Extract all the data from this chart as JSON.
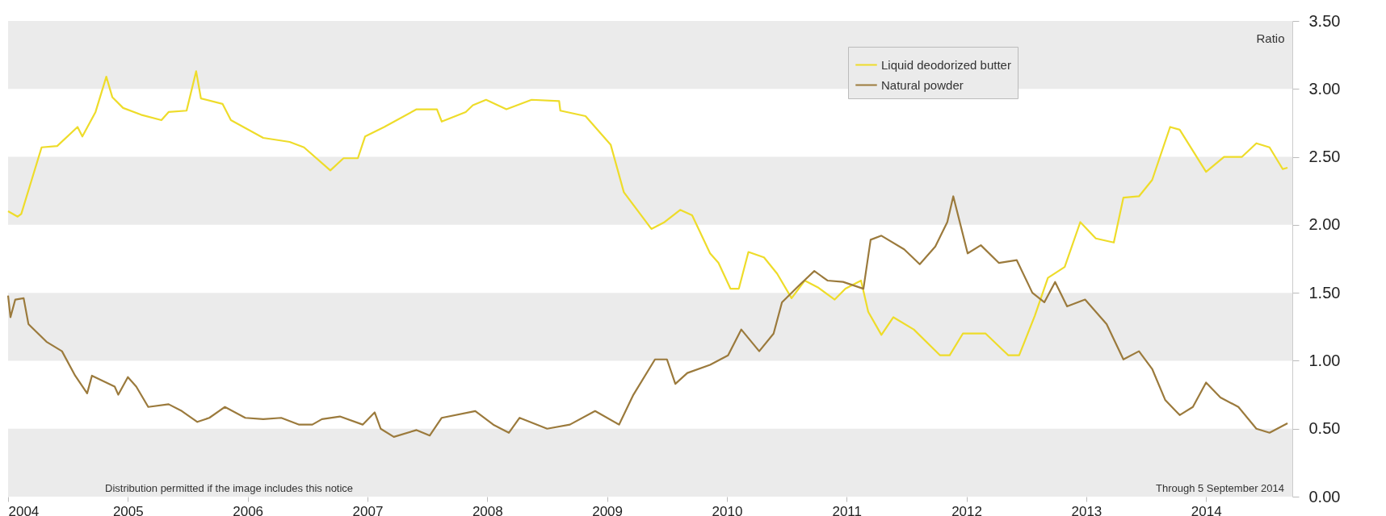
{
  "chart_data": {
    "type": "line",
    "ylabel": "Ratio",
    "legend": "top right",
    "line_style": "solid",
    "xlim": [
      2004,
      2014.72
    ],
    "xticks": [
      2004,
      2005,
      2006,
      2007,
      2008,
      2009,
      2010,
      2011,
      2012,
      2013,
      2014
    ],
    "ylim": [
      0,
      3.5
    ],
    "yticks": [
      {
        "value": 0,
        "label": "0.00"
      },
      {
        "value": 0.5,
        "label": "0.50"
      },
      {
        "value": 1,
        "label": "1.00"
      },
      {
        "value": 1.5,
        "label": "1.50"
      },
      {
        "value": 2,
        "label": "2.00"
      },
      {
        "value": 2.5,
        "label": "2.50"
      },
      {
        "value": 3,
        "label": "3.00"
      },
      {
        "value": 3.5,
        "label": "3.50"
      }
    ],
    "bands": [
      {
        "axis": "y",
        "from": 0,
        "to": 0.5,
        "color": "#ebebeb"
      },
      {
        "axis": "y",
        "from": 1,
        "to": 1.5,
        "color": "#ebebeb"
      },
      {
        "axis": "y",
        "from": 2,
        "to": 2.5,
        "color": "#ebebeb"
      },
      {
        "axis": "y",
        "from": 3,
        "to": 3.5,
        "color": "#ebebeb"
      }
    ],
    "annotations": [
      "Distribution permitted if the image includes this notice",
      "Through 5 September 2014"
    ],
    "series": [
      {
        "name": "Liquid deodorized butter",
        "color": "#eedc2a",
        "x": [
          2004.0,
          2004.08,
          2004.11,
          2004.28,
          2004.41,
          2004.58,
          2004.62,
          2004.73,
          2004.82,
          2004.87,
          2004.96,
          2005.11,
          2005.28,
          2005.34,
          2005.49,
          2005.57,
          2005.61,
          2005.79,
          2005.86,
          2006.13,
          2006.35,
          2006.47,
          2006.69,
          2006.8,
          2006.92,
          2006.98,
          2007.14,
          2007.41,
          2007.58,
          2007.62,
          2007.82,
          2007.88,
          2007.99,
          2008.16,
          2008.37,
          2008.6,
          2008.61,
          2008.82,
          2009.03,
          2009.14,
          2009.37,
          2009.48,
          2009.61,
          2009.71,
          2009.86,
          2009.93,
          2010.03,
          2010.1,
          2010.18,
          2010.31,
          2010.42,
          2010.54,
          2010.65,
          2010.76,
          2010.9,
          2010.99,
          2011.12,
          2011.18,
          2011.29,
          2011.39,
          2011.56,
          2011.78,
          2011.86,
          2011.97,
          2012.16,
          2012.35,
          2012.44,
          2012.57,
          2012.68,
          2012.82,
          2012.95,
          2013.08,
          2013.23,
          2013.31,
          2013.44,
          2013.55,
          2013.7,
          2013.78,
          2014.0,
          2014.15,
          2014.3,
          2014.42,
          2014.53,
          2014.64,
          2014.68
        ],
        "values": [
          2.1,
          2.06,
          2.08,
          2.57,
          2.58,
          2.72,
          2.65,
          2.83,
          3.09,
          2.94,
          2.86,
          2.81,
          2.77,
          2.83,
          2.84,
          3.13,
          2.93,
          2.89,
          2.77,
          2.64,
          2.61,
          2.57,
          2.4,
          2.49,
          2.49,
          2.65,
          2.72,
          2.85,
          2.85,
          2.76,
          2.83,
          2.88,
          2.92,
          2.85,
          2.92,
          2.91,
          2.84,
          2.8,
          2.59,
          2.24,
          1.97,
          2.02,
          2.11,
          2.07,
          1.79,
          1.72,
          1.53,
          1.53,
          1.8,
          1.76,
          1.64,
          1.46,
          1.59,
          1.54,
          1.45,
          1.53,
          1.59,
          1.36,
          1.19,
          1.32,
          1.23,
          1.04,
          1.04,
          1.2,
          1.2,
          1.04,
          1.04,
          1.33,
          1.61,
          1.69,
          2.02,
          1.9,
          1.87,
          2.2,
          2.21,
          2.33,
          2.72,
          2.7,
          2.39,
          2.5,
          2.5,
          2.6,
          2.57,
          2.41,
          2.42
        ]
      },
      {
        "name": "Natural powder",
        "color": "#9b7a3c",
        "x": [
          2004.0,
          2004.02,
          2004.06,
          2004.13,
          2004.17,
          2004.32,
          2004.45,
          2004.56,
          2004.66,
          2004.7,
          2004.89,
          2004.92,
          2005.0,
          2005.07,
          2005.17,
          2005.34,
          2005.45,
          2005.58,
          2005.68,
          2005.81,
          2005.98,
          2006.13,
          2006.28,
          2006.43,
          2006.54,
          2006.62,
          2006.77,
          2006.96,
          2007.06,
          2007.11,
          2007.22,
          2007.41,
          2007.52,
          2007.62,
          2007.9,
          2008.05,
          2008.18,
          2008.27,
          2008.5,
          2008.69,
          2008.9,
          2009.1,
          2009.22,
          2009.4,
          2009.5,
          2009.57,
          2009.67,
          2009.86,
          2010.01,
          2010.12,
          2010.27,
          2010.39,
          2010.46,
          2010.61,
          2010.73,
          2010.84,
          2010.97,
          2011.14,
          2011.2,
          2011.29,
          2011.48,
          2011.61,
          2011.74,
          2011.84,
          2011.89,
          2012.01,
          2012.12,
          2012.27,
          2012.42,
          2012.55,
          2012.65,
          2012.74,
          2012.84,
          2012.99,
          2013.08,
          2013.17,
          2013.31,
          2013.44,
          2013.55,
          2013.66,
          2013.78,
          2013.89,
          2014.0,
          2014.12,
          2014.27,
          2014.42,
          2014.53,
          2014.68
        ],
        "values": [
          1.48,
          1.32,
          1.45,
          1.46,
          1.27,
          1.14,
          1.07,
          0.89,
          0.76,
          0.89,
          0.81,
          0.75,
          0.88,
          0.81,
          0.66,
          0.68,
          0.63,
          0.55,
          0.58,
          0.66,
          0.58,
          0.57,
          0.58,
          0.53,
          0.53,
          0.57,
          0.59,
          0.53,
          0.62,
          0.5,
          0.44,
          0.49,
          0.45,
          0.58,
          0.63,
          0.53,
          0.47,
          0.58,
          0.5,
          0.53,
          0.63,
          0.53,
          0.75,
          1.01,
          1.01,
          0.83,
          0.91,
          0.97,
          1.04,
          1.23,
          1.07,
          1.2,
          1.43,
          1.56,
          1.66,
          1.59,
          1.58,
          1.53,
          1.89,
          1.92,
          1.82,
          1.71,
          1.84,
          2.02,
          2.21,
          1.79,
          1.85,
          1.72,
          1.74,
          1.5,
          1.43,
          1.58,
          1.4,
          1.45,
          1.36,
          1.27,
          1.01,
          1.07,
          0.94,
          0.71,
          0.6,
          0.66,
          0.84,
          0.73,
          0.66,
          0.5,
          0.47,
          0.54
        ]
      }
    ]
  }
}
